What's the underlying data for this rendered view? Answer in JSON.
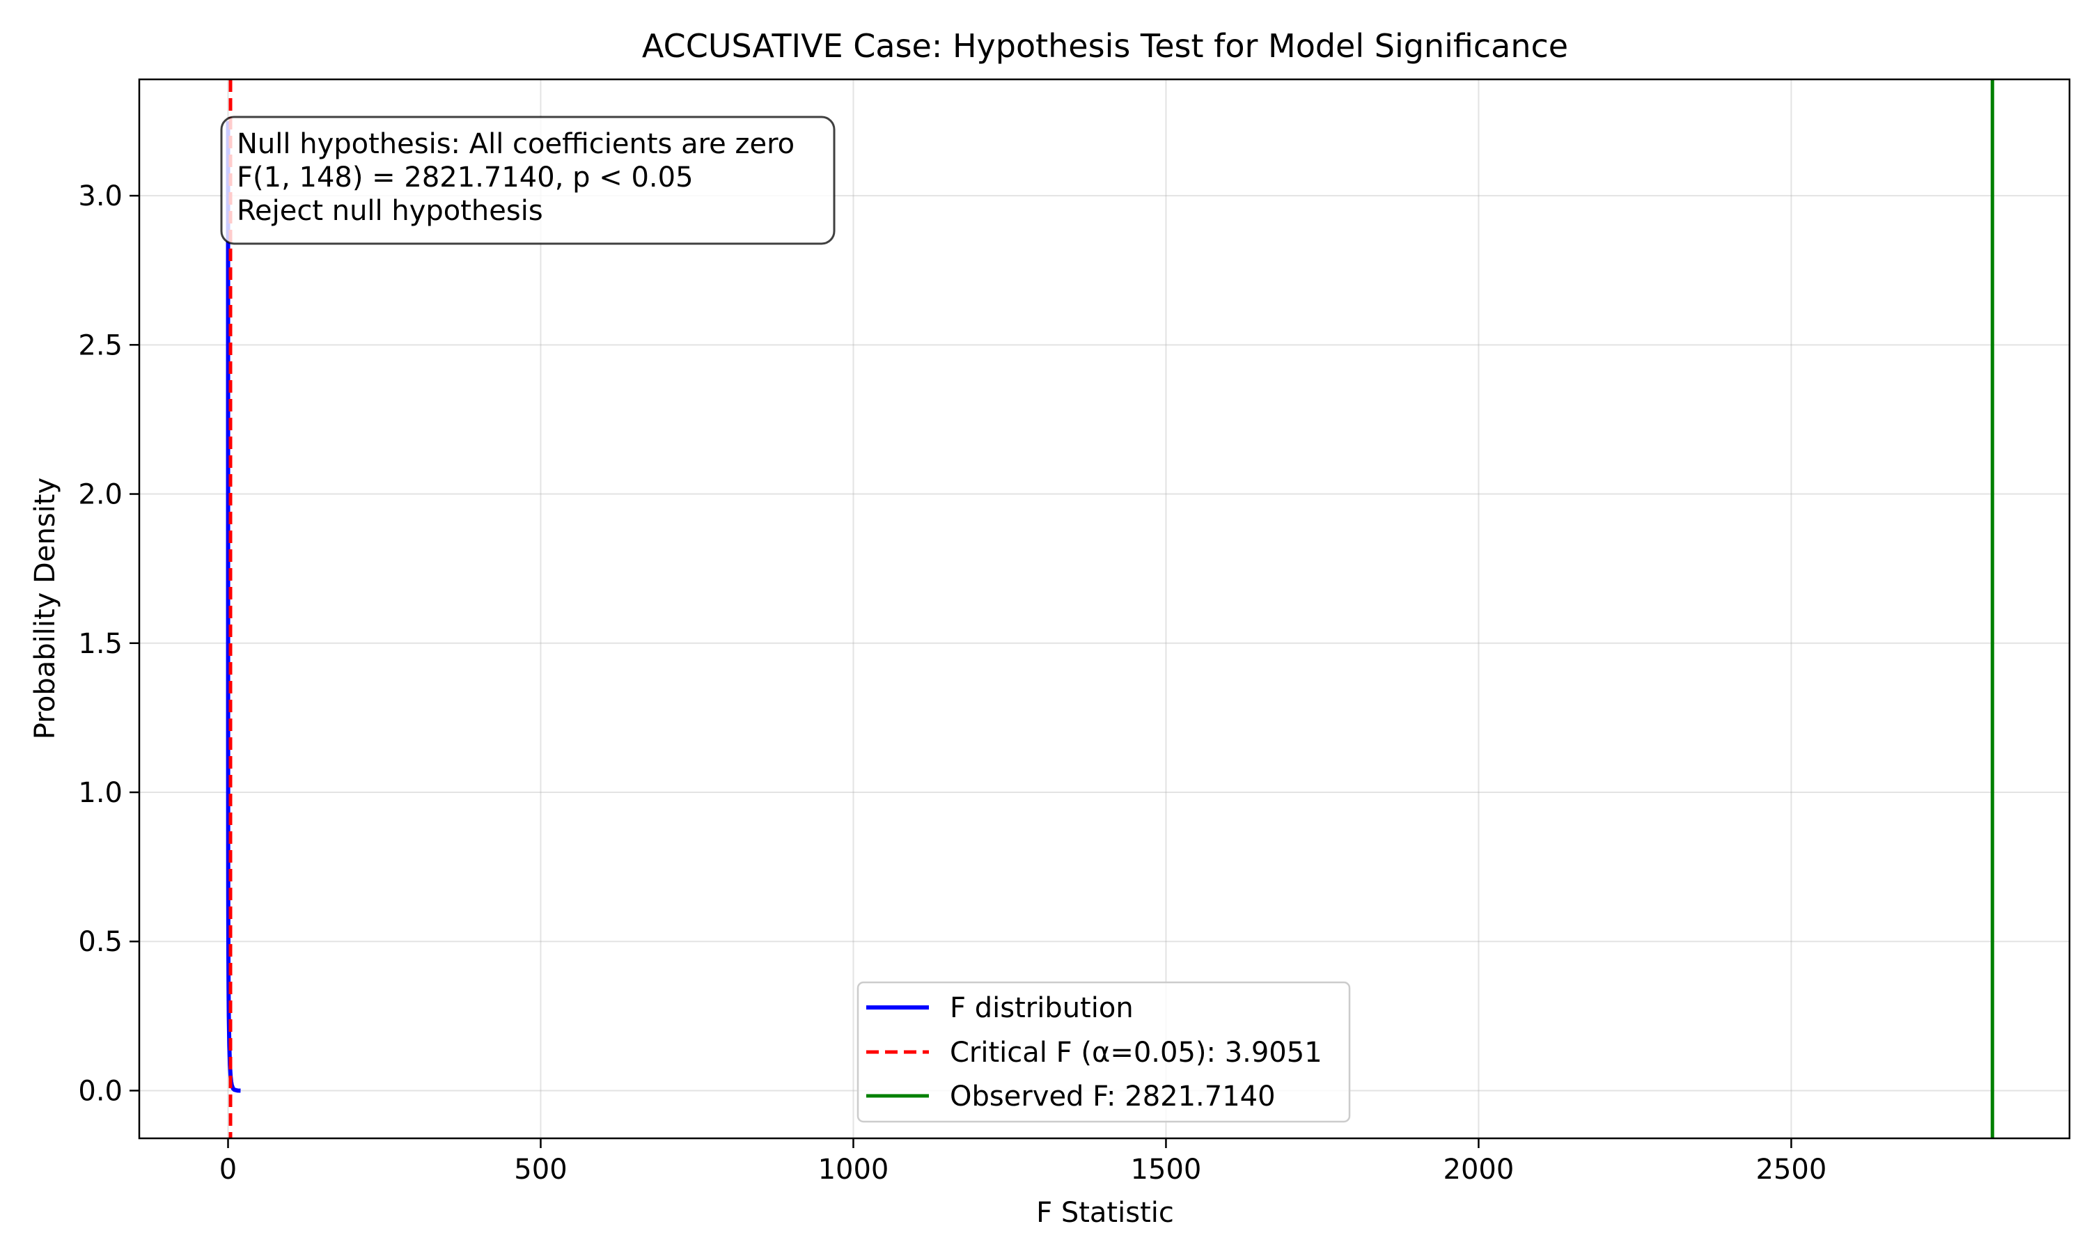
{
  "chart_data": {
    "type": "line",
    "title": "ACCUSATIVE Case: Hypothesis Test for Model Significance",
    "xlabel": "F Statistic",
    "ylabel": "Probability Density",
    "xlim": [
      -142,
      2945
    ],
    "ylim": [
      -0.16,
      3.39
    ],
    "x_ticks": [
      0,
      500,
      1000,
      1500,
      2000,
      2500
    ],
    "y_ticks": [
      0.0,
      0.5,
      1.0,
      1.5,
      2.0,
      2.5,
      3.0
    ],
    "x_tick_labels": [
      "0",
      "500",
      "1000",
      "1500",
      "2000",
      "2500"
    ],
    "y_tick_labels": [
      "0.0",
      "0.5",
      "1.0",
      "1.5",
      "2.0",
      "2.5",
      "3.0"
    ],
    "grid": true,
    "legend_position": "bottom-center",
    "series": [
      {
        "name": "F distribution",
        "style": "solid",
        "color": "#0000ff",
        "x": [
          0.02,
          0.05,
          0.1,
          0.2,
          0.3,
          0.5,
          0.8,
          1.2,
          2,
          3,
          4,
          5,
          6,
          8,
          10,
          15,
          20
        ],
        "y": [
          3.25,
          1.72,
          1.2,
          0.82,
          0.65,
          0.48,
          0.35,
          0.25,
          0.15,
          0.086,
          0.05,
          0.03,
          0.018,
          0.007,
          0.003,
          0.0003,
          0.0
        ]
      }
    ],
    "reference_lines": [
      {
        "name": "Critical F (α=0.05): 3.9051",
        "x": 3.9051,
        "style": "dashed",
        "color": "#ff0000"
      },
      {
        "name": "Observed F: 2821.7140",
        "x": 2821.714,
        "style": "solid",
        "color": "#008000"
      }
    ],
    "annotation": {
      "lines": [
        "Null hypothesis: All coefficients are zero",
        "F(1, 148) = 2821.7140, p < 0.05",
        "Reject null hypothesis"
      ]
    }
  }
}
